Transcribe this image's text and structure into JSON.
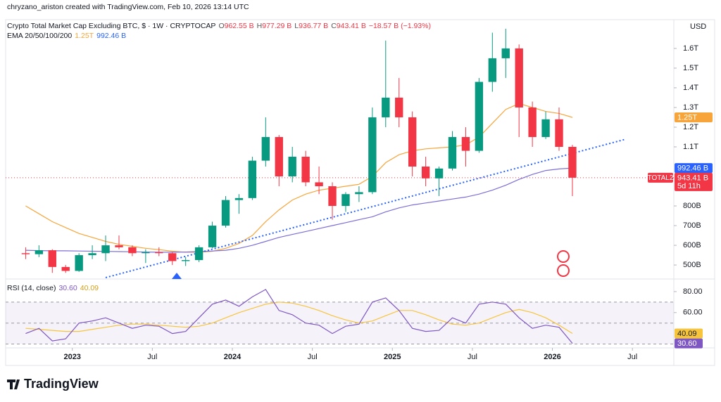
{
  "header": {
    "credit": "chryzano_ariston created with TradingView.com, Feb 10, 2026 13:14 UTC",
    "currency": "USD",
    "brand": "TradingView"
  },
  "chart_data": {
    "type": "candlestick",
    "title": "Crypto Total Market Cap Excluding BTC, $ · 1W · CRYPTOCAP",
    "ohlc": [
      {
        "key": "O",
        "text": "962.55 B"
      },
      {
        "key": "H",
        "text": "977.29 B"
      },
      {
        "key": "L",
        "text": "936.77 B"
      },
      {
        "key": "C",
        "text": "943.41 B"
      }
    ],
    "change": "−18.57 B (−1.93%)",
    "indicator": "EMA 20/50/100/200",
    "xlim": [
      "2022-08",
      "2026-10"
    ],
    "xticks": [
      {
        "value": "2023-01",
        "label": "2023"
      },
      {
        "value": "2023-07",
        "label": "Jul"
      },
      {
        "value": "2024-01",
        "label": "2024"
      },
      {
        "value": "2024-07",
        "label": "Jul"
      },
      {
        "value": "2025-01",
        "label": "2025"
      },
      {
        "value": "2025-07",
        "label": "Jul"
      },
      {
        "value": "2026-01",
        "label": "2026"
      },
      {
        "value": "2026-07",
        "label": "Jul"
      }
    ],
    "ylim": [
      436,
      1746
    ],
    "yticks": [
      {
        "value": 500,
        "label": "500B"
      },
      {
        "value": 600,
        "label": "600B"
      },
      {
        "value": 700,
        "label": "700B"
      },
      {
        "value": 800,
        "label": "800B"
      },
      {
        "value": 1100,
        "label": "1.1T"
      },
      {
        "value": 1200,
        "label": "1.2T"
      },
      {
        "value": 1300,
        "label": "1.3T"
      },
      {
        "value": 1400,
        "label": "1.4T"
      },
      {
        "value": 1500,
        "label": "1.5T"
      },
      {
        "value": 1600,
        "label": "1.6T"
      }
    ],
    "up_color": "#089981",
    "down_color": "#f23645",
    "x": [
      "2022-09",
      "2022-10",
      "2022-11",
      "2022-12",
      "2023-01",
      "2023-02",
      "2023-03",
      "2023-04",
      "2023-05",
      "2023-06",
      "2023-07",
      "2023-08",
      "2023-09",
      "2023-10",
      "2023-11",
      "2023-12",
      "2024-01",
      "2024-02",
      "2024-03",
      "2024-04",
      "2024-05",
      "2024-06",
      "2024-07",
      "2024-08",
      "2024-09",
      "2024-10",
      "2024-11",
      "2024-12",
      "2025-01",
      "2025-02",
      "2025-03",
      "2025-04",
      "2025-05",
      "2025-06",
      "2025-07",
      "2025-08",
      "2025-09",
      "2025-10",
      "2025-11",
      "2025-12",
      "2026-01",
      "2026-02"
    ],
    "open": [
      560,
      555,
      575,
      490,
      470,
      550,
      560,
      600,
      590,
      560,
      565,
      560,
      520,
      525,
      590,
      700,
      830,
      840,
      1030,
      1150,
      950,
      1050,
      920,
      900,
      800,
      860,
      870,
      1250,
      1350,
      1250,
      1000,
      940,
      990,
      1150,
      1080,
      1430,
      1550,
      1600,
      1300,
      1150,
      1240,
      1100
    ],
    "high": [
      590,
      600,
      580,
      500,
      560,
      600,
      650,
      650,
      600,
      580,
      590,
      565,
      540,
      600,
      720,
      850,
      860,
      1050,
      1250,
      1160,
      1100,
      1080,
      1000,
      920,
      870,
      900,
      1300,
      1640,
      1450,
      1280,
      1050,
      1000,
      1180,
      1200,
      1450,
      1680,
      1700,
      1620,
      1330,
      1280,
      1300,
      1110
    ],
    "low": [
      530,
      540,
      460,
      460,
      465,
      530,
      520,
      580,
      545,
      510,
      545,
      500,
      495,
      515,
      585,
      690,
      760,
      830,
      1000,
      900,
      920,
      900,
      860,
      730,
      770,
      820,
      860,
      1200,
      1200,
      950,
      900,
      850,
      980,
      1000,
      1070,
      1380,
      1450,
      1150,
      1100,
      1140,
      1080,
      850
    ],
    "close": [
      555,
      575,
      490,
      470,
      550,
      560,
      600,
      590,
      560,
      565,
      560,
      520,
      525,
      590,
      700,
      830,
      840,
      1030,
      1150,
      950,
      1050,
      920,
      900,
      800,
      860,
      870,
      1250,
      1350,
      1250,
      1000,
      940,
      990,
      1150,
      1080,
      1430,
      1550,
      1600,
      1300,
      1150,
      1240,
      1100,
      943.41
    ],
    "overlays": [
      {
        "color": "#f7a53b",
        "values": [
          800,
          760,
          720,
          690,
          660,
          640,
          620,
          605,
          595,
          585,
          578,
          570,
          565,
          565,
          570,
          585,
          610,
          650,
          720,
          780,
          830,
          860,
          880,
          890,
          900,
          910,
          950,
          1020,
          1060,
          1080,
          1090,
          1095,
          1100,
          1110,
          1150,
          1220,
          1290,
          1320,
          1300,
          1280,
          1270,
          1250
        ]
      },
      {
        "color": "#7b6fd6",
        "values": [
          575,
          573,
          572,
          572,
          571,
          570,
          569,
          568,
          567,
          566,
          565,
          565,
          566,
          568,
          571,
          575,
          585,
          600,
          620,
          640,
          655,
          670,
          685,
          700,
          715,
          730,
          745,
          770,
          790,
          805,
          815,
          825,
          835,
          845,
          860,
          880,
          905,
          935,
          960,
          980,
          988,
          992.46
        ]
      }
    ],
    "trendline": {
      "color": "#2962ff",
      "x": [
        "2023-03",
        "2026-06"
      ],
      "values": [
        436,
        1139
      ]
    },
    "markers": [
      {
        "value": 1250,
        "label": "1.25T",
        "color": "#f7a53b"
      },
      {
        "value": 992.46,
        "label": "992.46 B",
        "color": "#2962ff"
      }
    ],
    "last_price": {
      "value": 943.41,
      "label": "943.41 B",
      "countdown": "5d 11h",
      "symbol": "TOTAL2",
      "color": "#f23645"
    },
    "rsi": {
      "label": "RSI (14, close)",
      "ylim": [
        25,
        90
      ],
      "yticks": [
        {
          "value": 80,
          "label": "80.00"
        },
        {
          "value": 60,
          "label": "60.00"
        }
      ],
      "levels": [
        70,
        50,
        30
      ],
      "color": "#7e57c2",
      "ma_color": "#f7c53b",
      "values": [
        40,
        45,
        33,
        35,
        50,
        52,
        55,
        50,
        45,
        48,
        47,
        40,
        42,
        55,
        68,
        72,
        66,
        75,
        82,
        62,
        58,
        50,
        48,
        40,
        47,
        49,
        70,
        74,
        62,
        45,
        42,
        43,
        55,
        50,
        68,
        70,
        68,
        55,
        45,
        48,
        46,
        30.6
      ],
      "ma_values": [
        45,
        44,
        43,
        42,
        42,
        44,
        46,
        48,
        49,
        49,
        48,
        47,
        46,
        47,
        50,
        55,
        60,
        64,
        68,
        70,
        69,
        66,
        62,
        57,
        53,
        50,
        52,
        57,
        62,
        62,
        58,
        53,
        49,
        48,
        50,
        55,
        60,
        63,
        60,
        55,
        48,
        40.09
      ],
      "readout": [
        {
          "value": 30.6,
          "label": "30.60",
          "color": "#7e57c2"
        },
        {
          "value": 40.09,
          "label": "40.09",
          "color": "#f7c53b"
        }
      ]
    }
  }
}
